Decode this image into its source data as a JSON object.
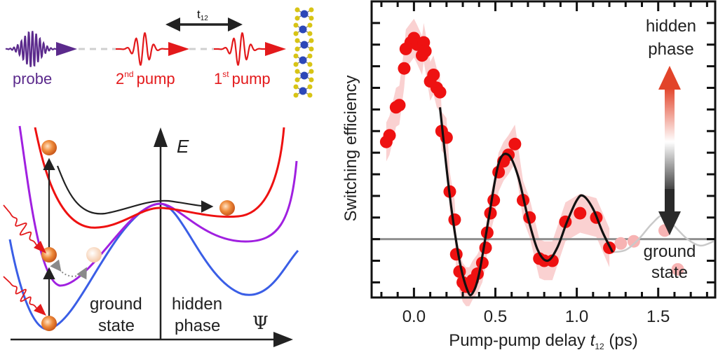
{
  "scheme": {
    "probe_label": "probe",
    "pump2_label": "2",
    "pump2_sup": "nd",
    "pump2_word": "pump",
    "pump1_label": "1",
    "pump1_sup": "st",
    "pump1_word": "pump",
    "delay_label": "t",
    "delay_sub": "12",
    "colors": {
      "probe": "#5b2a8c",
      "pump": "#e3191b",
      "arrow": "#222222",
      "atom_blue": "#2c47b8",
      "atom_yellow": "#d8c415"
    }
  },
  "energy_diagram": {
    "energy_axis_label": "E",
    "order_param_label": "Ψ",
    "ground_label_line1": "ground",
    "ground_label_line2": "state",
    "hidden_label_line1": "hidden",
    "hidden_label_line2": "phase",
    "colors": {
      "ground_curve": "#3a5ee6",
      "intermediate_curve": "#a020e0",
      "excited_curve": "#ee1111",
      "ball": "#e8782a"
    }
  },
  "chart_data": {
    "type": "scatter",
    "title": "",
    "xlabel": "Pump-pump delay",
    "xlabel_var": "t",
    "xlabel_sub": "12",
    "xlabel_unit": "(ps)",
    "ylabel": "Switching efficiency",
    "xlim": [
      -0.26,
      1.85
    ],
    "ylim": [
      -2.7,
      11.0
    ],
    "xticks": [
      0.0,
      0.5,
      1.0,
      1.5
    ],
    "xtick_labels": [
      "0.0",
      "0.5",
      "1.0",
      "1.5"
    ],
    "yticks_labeled": false,
    "baseline": 0,
    "annotations": {
      "top": [
        "hidden",
        "phase"
      ],
      "bottom": [
        "ground",
        "state"
      ]
    },
    "series": [
      {
        "name": "measured",
        "style": "red-dots-with-error-band",
        "color": "#ee1111",
        "x": [
          -0.17,
          -0.15,
          -0.11,
          -0.09,
          -0.06,
          -0.05,
          -0.02,
          0.0,
          0.02,
          0.05,
          0.06,
          0.07,
          0.1,
          0.12,
          0.14,
          0.16,
          0.17,
          0.2,
          0.22,
          0.25,
          0.26,
          0.28,
          0.3,
          0.32,
          0.34,
          0.36,
          0.39,
          0.42,
          0.44,
          0.45,
          0.47,
          0.49,
          0.52,
          0.55,
          0.58,
          0.62,
          0.67,
          0.71,
          0.77,
          0.8,
          0.85,
          0.93,
          1.02,
          1.12,
          1.2
        ],
        "y": [
          4.5,
          4.8,
          6.1,
          6.2,
          7.9,
          8.8,
          9.1,
          9.3,
          9.0,
          8.5,
          9.1,
          8.7,
          7.3,
          7.6,
          7.0,
          6.8,
          5.0,
          4.7,
          2.2,
          0.9,
          -0.7,
          -1.5,
          -2.0,
          -2.2,
          -2.2,
          -1.9,
          -1.6,
          -1.1,
          -0.4,
          0.3,
          1.2,
          1.8,
          3.1,
          3.6,
          3.9,
          4.4,
          1.8,
          1.0,
          -0.9,
          -1.0,
          -1.0,
          0.8,
          1.2,
          1.0,
          -0.4
        ]
      },
      {
        "name": "measured-faded",
        "style": "faded-red-dots",
        "color": "#f7b3b3",
        "x": [
          1.27,
          1.35,
          1.54,
          1.62
        ],
        "y": [
          -0.2,
          -0.1,
          0.4,
          -1.4
        ]
      },
      {
        "name": "fit",
        "style": "black-line",
        "color": "#111111",
        "x_range": [
          0.16,
          1.22
        ],
        "model": "damped-oscillation",
        "points_x": [
          0.16,
          0.22,
          0.28,
          0.33,
          0.36,
          0.4,
          0.46,
          0.52,
          0.58,
          0.64,
          0.7,
          0.76,
          0.82,
          0.88,
          0.94,
          1.0,
          1.04,
          1.1,
          1.16,
          1.22
        ],
        "points_y": [
          6.1,
          2.0,
          -1.0,
          -2.4,
          -2.5,
          -1.6,
          1.0,
          3.5,
          3.9,
          2.9,
          1.0,
          -0.5,
          -1.0,
          -0.4,
          0.8,
          1.8,
          2.0,
          1.4,
          0.3,
          -0.6
        ]
      },
      {
        "name": "fit-extrapolated",
        "style": "light-gray-line",
        "color": "#c9c9c9",
        "points_x": [
          1.22,
          1.3,
          1.38,
          1.46,
          1.53,
          1.6,
          1.68,
          1.76,
          1.84
        ],
        "points_y": [
          -0.6,
          -0.5,
          0.0,
          0.7,
          1.1,
          0.6,
          0.0,
          -0.3,
          -0.1
        ]
      }
    ]
  }
}
